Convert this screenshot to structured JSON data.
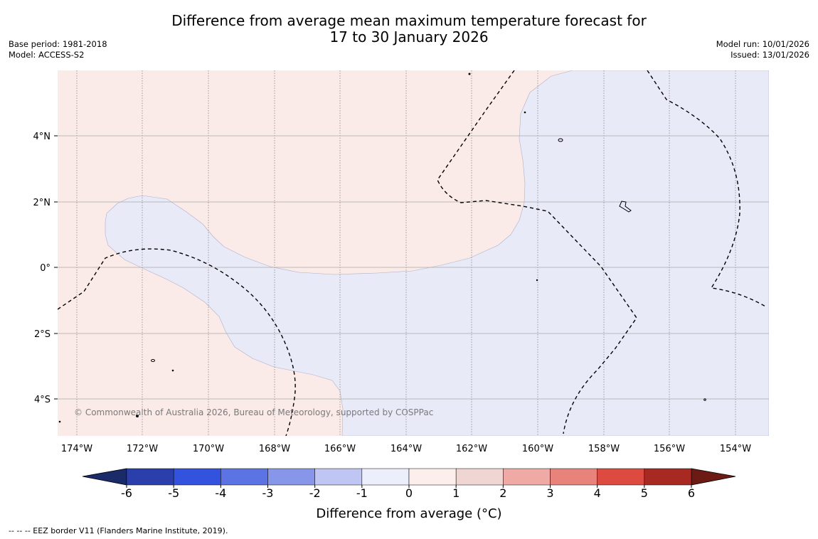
{
  "title": {
    "line1": "Difference from average mean maximum temperature forecast for",
    "line2": "17 to 30 January 2026"
  },
  "meta_left": {
    "base_period": "Base period: 1981-2018",
    "model": "Model: ACCESS-S2"
  },
  "meta_right": {
    "model_run": "Model run: 10/01/2026",
    "issued": "Issued: 13/01/2026"
  },
  "map": {
    "lon_ticks": [
      "174°W",
      "172°W",
      "170°W",
      "168°W",
      "166°W",
      "164°W",
      "162°W",
      "160°W",
      "158°W",
      "156°W",
      "154°W"
    ],
    "lat_ticks": [
      "4°N",
      "2°N",
      "0°",
      "2°S",
      "4°S"
    ],
    "copyright": "© Commonwealth of Australia 2026, Bureau of Meteorology, supported by COSPPac",
    "regions": [
      {
        "category": "1 to 2",
        "color": "#faeae8"
      },
      {
        "category": "-1 to 0",
        "color": "#e8eaf8"
      }
    ]
  },
  "colorbar": {
    "label": "Difference from average (°C)",
    "ticks": [
      "-6",
      "-5",
      "-4",
      "-3",
      "-2",
      "-1",
      "0",
      "1",
      "2",
      "3",
      "4",
      "5",
      "6"
    ],
    "under_color": "#1b2b6a",
    "over_color": "#6e1a14",
    "colors": [
      "#2a3fab",
      "#3352dd",
      "#5b73e3",
      "#8896ea",
      "#c0c6f3",
      "#eceefb",
      "#fbeeeb",
      "#efd6d3",
      "#f0aaa6",
      "#e8837c",
      "#dc4a40",
      "#a82822"
    ]
  },
  "footer": "--  --  -- EEZ border V11 (Flanders Marine Institute, 2019)."
}
